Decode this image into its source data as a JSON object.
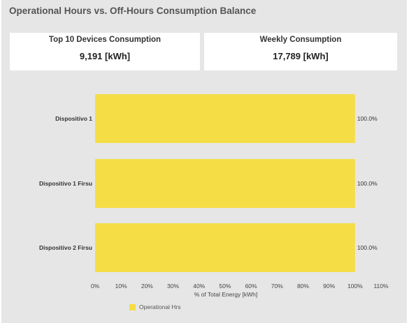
{
  "page_title": "Operational Hours vs. Off-Hours Consumption Balance",
  "kpis": [
    {
      "title": "Top 10 Devices Consumption",
      "value": "9,191 [kWh]"
    },
    {
      "title": "Weekly Consumption",
      "value": "17,789 [kWh]"
    }
  ],
  "colors": {
    "panel_background": "#e6e6e6",
    "card_background": "#ffffff",
    "operational_hrs": "#f5dd46"
  },
  "chart_data": {
    "type": "bar",
    "orientation": "horizontal",
    "stacked": true,
    "categories": [
      "Dispositivo 1",
      "Dispositivo 1 Firsu",
      "Dispositivo 2 Firsu"
    ],
    "series": [
      {
        "name": "Operational Hrs",
        "values": [
          100.0,
          100.0,
          100.0
        ]
      }
    ],
    "data_labels": [
      "100.0%",
      "100.0%",
      "100.0%"
    ],
    "xlabel": "% of Total Energy [kWh]",
    "ylabel": "",
    "xlim": [
      0,
      110
    ],
    "x_ticks": [
      0,
      10,
      20,
      30,
      40,
      50,
      60,
      70,
      80,
      90,
      100,
      110
    ],
    "x_tick_labels": [
      "0%",
      "10%",
      "20%",
      "30%",
      "40%",
      "50%",
      "60%",
      "70%",
      "80%",
      "90%",
      "100%",
      "110%"
    ],
    "grid": false,
    "legend_position": "bottom-left"
  }
}
